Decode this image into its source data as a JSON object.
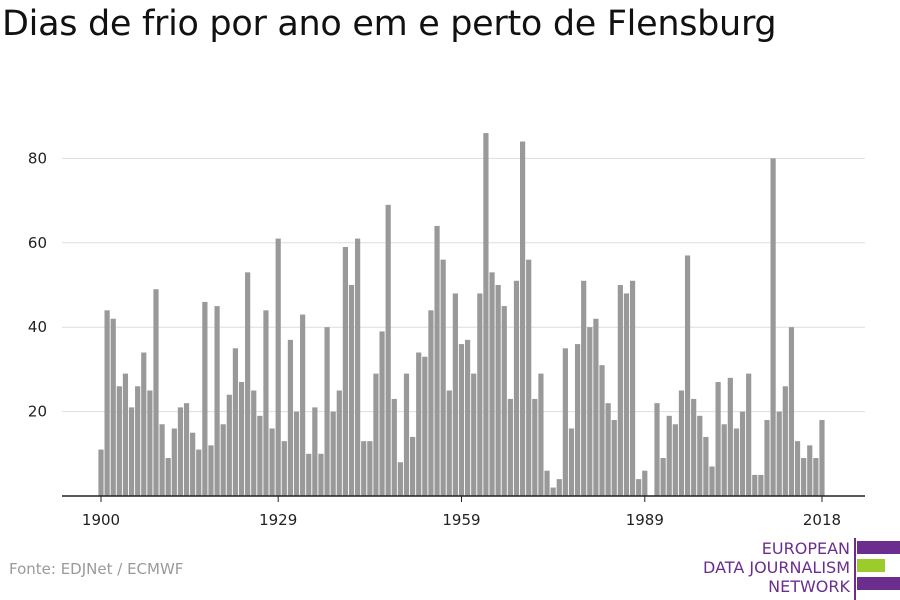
{
  "title": "Dias de frio por ano em e perto de Flensburg",
  "source": "Fonte: EDJNet / ECMWF",
  "logo": {
    "lines": [
      "EUROPEAN",
      "DATA JOURNALISM",
      "NETWORK"
    ],
    "colors": {
      "purple": "#6b2e8f",
      "green": "#9ccc2c"
    }
  },
  "chart_data": {
    "type": "bar",
    "color": "#999999",
    "x_start": 1900,
    "years": [
      1900,
      1901,
      1902,
      1903,
      1904,
      1905,
      1906,
      1907,
      1908,
      1909,
      1910,
      1911,
      1912,
      1913,
      1914,
      1915,
      1916,
      1917,
      1918,
      1919,
      1920,
      1921,
      1922,
      1923,
      1924,
      1925,
      1926,
      1927,
      1928,
      1929,
      1930,
      1931,
      1932,
      1933,
      1934,
      1935,
      1936,
      1937,
      1938,
      1939,
      1940,
      1941,
      1942,
      1943,
      1944,
      1945,
      1946,
      1947,
      1948,
      1949,
      1950,
      1951,
      1952,
      1953,
      1954,
      1955,
      1956,
      1957,
      1958,
      1959,
      1960,
      1961,
      1962,
      1963,
      1964,
      1965,
      1966,
      1967,
      1968,
      1969,
      1970,
      1971,
      1972,
      1973,
      1974,
      1975,
      1976,
      1977,
      1978,
      1979,
      1980,
      1981,
      1982,
      1983,
      1984,
      1985,
      1986,
      1987,
      1988,
      1989,
      1990,
      1991,
      1992,
      1993,
      1994,
      1995,
      1996,
      1997,
      1998,
      1999,
      2000,
      2001,
      2002,
      2003,
      2004,
      2005,
      2006,
      2007,
      2008,
      2009,
      2010,
      2011,
      2012,
      2013,
      2014,
      2015,
      2016,
      2017,
      2018
    ],
    "values": [
      11,
      44,
      42,
      26,
      29,
      21,
      26,
      34,
      25,
      49,
      17,
      9,
      16,
      21,
      22,
      15,
      11,
      46,
      12,
      45,
      17,
      24,
      35,
      27,
      53,
      25,
      19,
      44,
      16,
      61,
      13,
      37,
      20,
      43,
      10,
      21,
      10,
      40,
      20,
      25,
      59,
      50,
      61,
      13,
      13,
      29,
      39,
      69,
      23,
      8,
      29,
      14,
      34,
      33,
      44,
      64,
      56,
      25,
      48,
      36,
      37,
      29,
      48,
      86,
      53,
      50,
      45,
      23,
      51,
      84,
      56,
      23,
      29,
      6,
      2,
      4,
      35,
      16,
      36,
      51,
      40,
      42,
      31,
      22,
      18,
      50,
      48,
      51,
      4,
      6,
      0,
      22,
      9,
      19,
      17,
      25,
      57,
      23,
      19,
      14,
      7,
      27,
      17,
      28,
      16,
      20,
      29,
      5,
      5,
      18,
      80,
      20,
      26,
      40,
      13,
      9,
      12,
      9,
      18
    ],
    "x_ticks": [
      "1900",
      "1929",
      "1959",
      "1989",
      "2018"
    ],
    "y_ticks": [
      "20",
      "40",
      "60",
      "80"
    ],
    "ylim": [
      0,
      90
    ],
    "grid": true
  }
}
